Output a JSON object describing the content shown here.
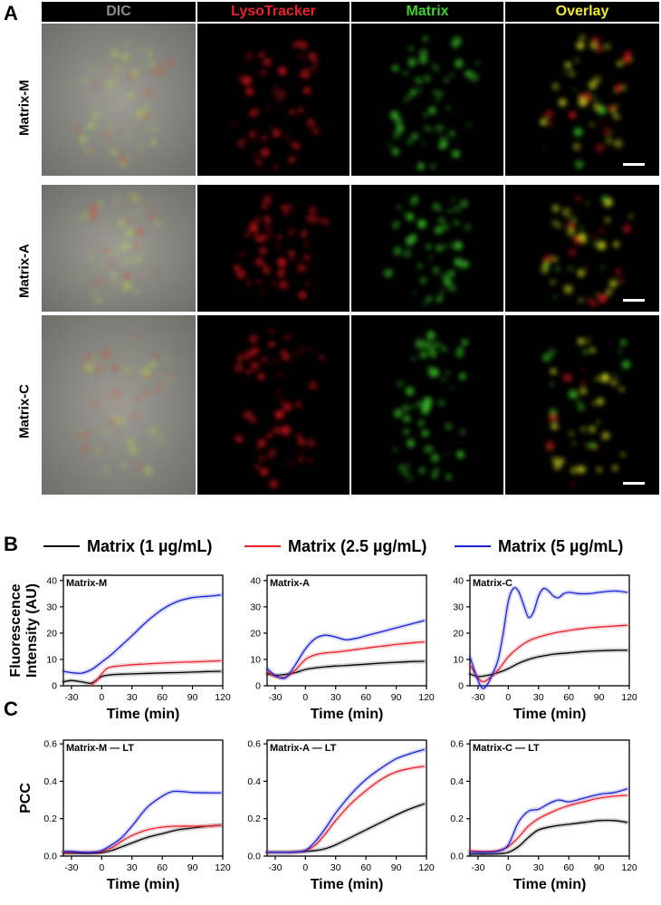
{
  "panels": {
    "a": "A",
    "b": "B",
    "c": "C"
  },
  "microscopy": {
    "columns": [
      {
        "label": "DIC",
        "color": "#8c8c8c"
      },
      {
        "label": "LysoTracker",
        "color": "#e8212a"
      },
      {
        "label": "Matrix",
        "color": "#3fd12c"
      },
      {
        "label": "Overlay",
        "color": "#f2ea2a"
      }
    ],
    "rows": [
      {
        "label": "Matrix-M"
      },
      {
        "label": "Matrix-A"
      },
      {
        "label": "Matrix-C"
      }
    ]
  },
  "legend": [
    {
      "label": "Matrix (1 µg/mL)",
      "color": "#000000"
    },
    {
      "label": "Matrix (2.5 µg/mL)",
      "color": "#e8212a"
    },
    {
      "label": "Matrix (5 µg/mL)",
      "color": "#1a22d6"
    }
  ],
  "chart_data": [
    {
      "type": "line",
      "title": "Matrix-M",
      "xlabel": "Time (min)",
      "ylabel": "Fluorescence Intensity (AU)",
      "xlim": [
        -38,
        120
      ],
      "ylim": [
        0,
        42
      ],
      "xticks": [
        -30,
        0,
        30,
        60,
        90,
        120
      ],
      "yticks": [
        0,
        10,
        20,
        30,
        40
      ],
      "series": [
        {
          "name": "Matrix (1 µg/mL)",
          "color": "#000000",
          "x": [
            -38,
            -30,
            -20,
            -10,
            0,
            10,
            20,
            30,
            45,
            60,
            75,
            90,
            105,
            118
          ],
          "y": [
            1.5,
            2.0,
            1.5,
            1.0,
            3.5,
            4.2,
            4.4,
            4.5,
            4.7,
            4.9,
            5.0,
            5.2,
            5.4,
            5.5
          ]
        },
        {
          "name": "Matrix (2.5 µg/mL)",
          "color": "#e8212a",
          "x": [
            -10,
            -5,
            0,
            5,
            10,
            20,
            30,
            45,
            60,
            75,
            90,
            105,
            118
          ],
          "y": [
            0.5,
            2.0,
            4.5,
            6.5,
            7.2,
            7.6,
            8.0,
            8.3,
            8.6,
            8.9,
            9.1,
            9.3,
            9.5
          ]
        },
        {
          "name": "Matrix (5 µg/mL)",
          "color": "#1a22d6",
          "x": [
            -38,
            -30,
            -20,
            -10,
            0,
            10,
            20,
            30,
            45,
            60,
            75,
            90,
            105,
            118
          ],
          "y": [
            5.5,
            5.0,
            4.8,
            6.2,
            9.0,
            12.0,
            15.5,
            19.0,
            24.5,
            29.0,
            32.0,
            33.5,
            34.0,
            34.5
          ]
        }
      ]
    },
    {
      "type": "line",
      "title": "Matrix-A",
      "xlabel": "Time (min)",
      "ylabel": "",
      "xlim": [
        -38,
        120
      ],
      "ylim": [
        0,
        42
      ],
      "xticks": [
        -30,
        0,
        30,
        60,
        90,
        120
      ],
      "yticks": [
        0,
        10,
        20,
        30,
        40
      ],
      "series": [
        {
          "name": "Matrix (1 µg/mL)",
          "color": "#000000",
          "x": [
            -38,
            -30,
            -20,
            -10,
            0,
            10,
            20,
            30,
            45,
            60,
            75,
            90,
            105,
            118
          ],
          "y": [
            4.5,
            4.0,
            4.3,
            5.0,
            6.2,
            6.8,
            7.2,
            7.5,
            7.8,
            8.2,
            8.6,
            8.9,
            9.2,
            9.3
          ]
        },
        {
          "name": "Matrix (2.5 µg/mL)",
          "color": "#e8212a",
          "x": [
            -38,
            -30,
            -20,
            -10,
            0,
            10,
            20,
            30,
            45,
            60,
            75,
            90,
            105,
            118
          ],
          "y": [
            5.5,
            3.5,
            3.2,
            6.0,
            10.0,
            11.8,
            12.5,
            12.8,
            13.5,
            14.3,
            15.0,
            15.7,
            16.3,
            16.7
          ]
        },
        {
          "name": "Matrix (5 µg/mL)",
          "color": "#1a22d6",
          "x": [
            -38,
            -30,
            -20,
            -10,
            0,
            10,
            20,
            30,
            40,
            50,
            60,
            75,
            90,
            105,
            118
          ],
          "y": [
            6.5,
            4.0,
            3.0,
            8.0,
            14.0,
            18.0,
            19.2,
            18.5,
            17.5,
            18.0,
            19.0,
            20.5,
            22.0,
            23.5,
            24.8
          ]
        }
      ]
    },
    {
      "type": "line",
      "title": "Matrix-C",
      "xlabel": "Time (min)",
      "ylabel": "",
      "xlim": [
        -38,
        120
      ],
      "ylim": [
        0,
        42
      ],
      "xticks": [
        -30,
        0,
        30,
        60,
        90,
        120
      ],
      "yticks": [
        0,
        10,
        20,
        30,
        40
      ],
      "series": [
        {
          "name": "Matrix (1 µg/mL)",
          "color": "#000000",
          "x": [
            -38,
            -30,
            -20,
            -10,
            0,
            10,
            20,
            30,
            45,
            60,
            75,
            90,
            105,
            118
          ],
          "y": [
            4.5,
            3.5,
            4.0,
            5.0,
            6.5,
            8.5,
            10.0,
            11.0,
            12.0,
            12.5,
            13.0,
            13.3,
            13.5,
            13.5
          ]
        },
        {
          "name": "Matrix (2.5 µg/mL)",
          "color": "#e8212a",
          "x": [
            -38,
            -30,
            -25,
            -20,
            -15,
            -10,
            -5,
            0,
            10,
            20,
            30,
            45,
            60,
            75,
            90,
            105,
            118
          ],
          "y": [
            8.0,
            3.0,
            1.5,
            2.5,
            4.0,
            6.0,
            8.5,
            11.0,
            14.5,
            17.0,
            18.5,
            20.0,
            21.0,
            21.8,
            22.3,
            22.7,
            23.0
          ]
        },
        {
          "name": "Matrix (5 µg/mL)",
          "color": "#1a22d6",
          "x": [
            -38,
            -30,
            -25,
            -20,
            -15,
            -10,
            -5,
            0,
            5,
            10,
            15,
            20,
            25,
            30,
            35,
            40,
            45,
            50,
            55,
            60,
            70,
            80,
            90,
            105,
            118
          ],
          "y": [
            11.0,
            2.0,
            -1.0,
            1.0,
            5.0,
            10.0,
            20.0,
            32.0,
            37.0,
            36.0,
            31.0,
            26.0,
            28.0,
            34.0,
            37.0,
            36.0,
            34.0,
            33.5,
            35.0,
            35.5,
            35.0,
            35.0,
            35.5,
            36.0,
            35.5
          ]
        }
      ]
    },
    {
      "type": "line",
      "title": "Matrix-M — LT",
      "xlabel": "Time (min)",
      "ylabel": "PCC",
      "xlim": [
        -38,
        120
      ],
      "ylim": [
        0,
        0.62
      ],
      "xticks": [
        -30,
        0,
        30,
        60,
        90,
        120
      ],
      "yticks": [
        0.0,
        0.2,
        0.4,
        0.6
      ],
      "series": [
        {
          "name": "Matrix (1 µg/mL)",
          "color": "#000000",
          "x": [
            -38,
            -30,
            -20,
            -10,
            0,
            10,
            20,
            30,
            45,
            60,
            75,
            90,
            105,
            118
          ],
          "y": [
            0.015,
            0.015,
            0.015,
            0.015,
            0.018,
            0.03,
            0.05,
            0.07,
            0.1,
            0.12,
            0.14,
            0.15,
            0.16,
            0.165
          ]
        },
        {
          "name": "Matrix (2.5 µg/mL)",
          "color": "#e8212a",
          "x": [
            -38,
            -30,
            -20,
            -10,
            0,
            10,
            20,
            30,
            45,
            60,
            75,
            90,
            105,
            118
          ],
          "y": [
            0.02,
            0.02,
            0.02,
            0.02,
            0.025,
            0.045,
            0.08,
            0.11,
            0.14,
            0.155,
            0.16,
            0.16,
            0.16,
            0.165
          ]
        },
        {
          "name": "Matrix (5 µg/mL)",
          "color": "#1a22d6",
          "x": [
            -38,
            -30,
            -20,
            -10,
            0,
            10,
            20,
            30,
            45,
            60,
            70,
            80,
            90,
            105,
            118
          ],
          "y": [
            0.025,
            0.025,
            0.02,
            0.02,
            0.03,
            0.06,
            0.1,
            0.16,
            0.26,
            0.32,
            0.345,
            0.345,
            0.34,
            0.338,
            0.338
          ]
        }
      ]
    },
    {
      "type": "line",
      "title": "Matrix-A — LT",
      "xlabel": "Time (min)",
      "ylabel": "",
      "xlim": [
        -38,
        120
      ],
      "ylim": [
        0,
        0.62
      ],
      "xticks": [
        -30,
        0,
        30,
        60,
        90,
        120
      ],
      "yticks": [
        0.0,
        0.2,
        0.4,
        0.6
      ],
      "series": [
        {
          "name": "Matrix (1 µg/mL)",
          "color": "#000000",
          "x": [
            -38,
            -30,
            -20,
            -10,
            0,
            10,
            20,
            30,
            45,
            60,
            75,
            90,
            105,
            118
          ],
          "y": [
            0.02,
            0.02,
            0.02,
            0.022,
            0.025,
            0.03,
            0.04,
            0.06,
            0.1,
            0.14,
            0.18,
            0.22,
            0.255,
            0.28
          ]
        },
        {
          "name": "Matrix (2.5 µg/mL)",
          "color": "#e8212a",
          "x": [
            -38,
            -30,
            -20,
            -10,
            0,
            10,
            20,
            30,
            45,
            60,
            75,
            90,
            105,
            118
          ],
          "y": [
            0.02,
            0.02,
            0.02,
            0.022,
            0.03,
            0.06,
            0.12,
            0.19,
            0.28,
            0.35,
            0.41,
            0.45,
            0.47,
            0.48
          ]
        },
        {
          "name": "Matrix (5 µg/mL)",
          "color": "#1a22d6",
          "x": [
            -38,
            -30,
            -20,
            -10,
            0,
            10,
            20,
            30,
            45,
            60,
            75,
            90,
            105,
            118
          ],
          "y": [
            0.02,
            0.02,
            0.02,
            0.022,
            0.03,
            0.08,
            0.15,
            0.23,
            0.33,
            0.41,
            0.47,
            0.52,
            0.55,
            0.57
          ]
        }
      ]
    },
    {
      "type": "line",
      "title": "Matrix-C — LT",
      "xlabel": "Time (min)",
      "ylabel": "",
      "xlim": [
        -38,
        120
      ],
      "ylim": [
        0,
        0.62
      ],
      "xticks": [
        -30,
        0,
        30,
        60,
        90,
        120
      ],
      "yticks": [
        0.0,
        0.2,
        0.4,
        0.6
      ],
      "series": [
        {
          "name": "Matrix (1 µg/mL)",
          "color": "#000000",
          "x": [
            -38,
            -30,
            -20,
            -10,
            0,
            10,
            20,
            30,
            45,
            60,
            75,
            90,
            105,
            118
          ],
          "y": [
            0.01,
            0.01,
            0.01,
            0.012,
            0.02,
            0.05,
            0.1,
            0.14,
            0.16,
            0.17,
            0.18,
            0.19,
            0.19,
            0.18
          ]
        },
        {
          "name": "Matrix (2.5 µg/mL)",
          "color": "#e8212a",
          "x": [
            -38,
            -30,
            -20,
            -10,
            0,
            10,
            20,
            30,
            45,
            60,
            75,
            90,
            105,
            118
          ],
          "y": [
            0.03,
            0.025,
            0.025,
            0.03,
            0.05,
            0.1,
            0.16,
            0.2,
            0.24,
            0.27,
            0.29,
            0.31,
            0.32,
            0.325
          ]
        },
        {
          "name": "Matrix (5 µg/mL)",
          "color": "#1a22d6",
          "x": [
            -38,
            -30,
            -20,
            -10,
            0,
            10,
            20,
            30,
            40,
            50,
            60,
            75,
            90,
            105,
            118
          ],
          "y": [
            0.02,
            0.02,
            0.02,
            0.025,
            0.06,
            0.18,
            0.24,
            0.25,
            0.28,
            0.3,
            0.29,
            0.31,
            0.33,
            0.34,
            0.36
          ]
        }
      ]
    }
  ]
}
